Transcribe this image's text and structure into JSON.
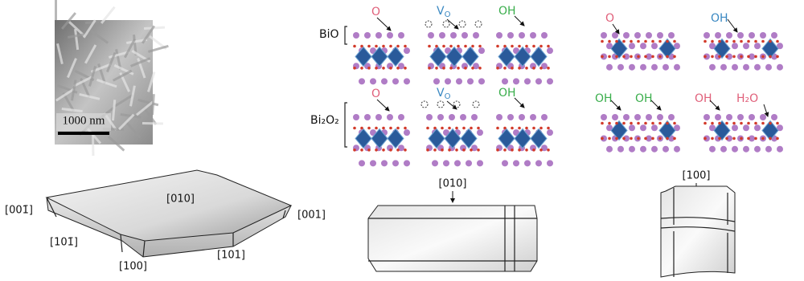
{
  "sem": {
    "scale_bar": "1000 nm"
  },
  "structures": {
    "layers": [
      "BiO",
      "Bi₂O₂"
    ],
    "top": {
      "o": "O",
      "vacancy": {
        "main": "V",
        "sub": "O"
      },
      "oh": "OH"
    },
    "bottom": {
      "o": "O",
      "vacancy": {
        "main": "V",
        "sub": "O"
      },
      "oh": "OH"
    },
    "right_top": [
      "O",
      "OH"
    ],
    "right_bottom": [
      "OH",
      "OH",
      "OH",
      "H₂O"
    ]
  },
  "crystals": {
    "platelet": [
      "[001̄]",
      "[010]",
      "[001]",
      "[101̄]",
      "[100]",
      "[101]"
    ],
    "side_view": "[010]",
    "end_view": "[100]"
  }
}
